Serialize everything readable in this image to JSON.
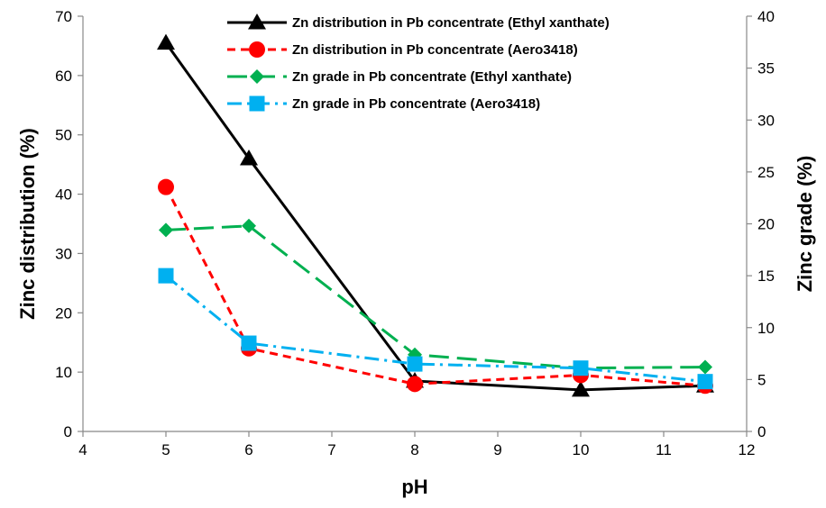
{
  "chart_data": {
    "type": "line",
    "xlabel": "pH",
    "ylabel": "Zinc distribution (%)",
    "y2label": "Zinc grade (%)",
    "xlim": [
      4,
      12
    ],
    "xticks": [
      4,
      5,
      6,
      7,
      8,
      9,
      10,
      11,
      12
    ],
    "ylim": [
      0,
      70
    ],
    "yticks": [
      0,
      10,
      20,
      30,
      40,
      50,
      60,
      70
    ],
    "y2lim": [
      0,
      40
    ],
    "y2ticks": [
      0,
      5,
      10,
      15,
      20,
      25,
      30,
      35,
      40
    ],
    "grid": false,
    "legend_position": "top-center",
    "series": [
      {
        "name": "Zn distribution in Pb concentrate (Ethyl xanthate)",
        "axis": "left",
        "color": "#000000",
        "line_style": "solid",
        "marker": "triangle",
        "x": [
          5,
          6,
          8,
          10,
          11.5
        ],
        "y": [
          65.5,
          46,
          8.5,
          7,
          7.7
        ]
      },
      {
        "name": "Zn distribution in Pb concentrate (Aero3418)",
        "axis": "left",
        "color": "#ff0000",
        "line_style": "dashed",
        "marker": "circle",
        "x": [
          5,
          6,
          8,
          10,
          11.5
        ],
        "y": [
          41.2,
          14,
          8,
          9.5,
          7.7
        ]
      },
      {
        "name": "Zn grade in Pb concentrate (Ethyl xanthate)",
        "axis": "right",
        "color": "#00b050",
        "line_style": "long-dash",
        "marker": "diamond",
        "x": [
          5,
          6,
          8,
          10,
          11.5
        ],
        "y": [
          19.4,
          19.8,
          7.4,
          6.1,
          6.2
        ]
      },
      {
        "name": "Zn grade in Pb concentrate (Aero3418)",
        "axis": "right",
        "color": "#00b0f0",
        "line_style": "dash-dot",
        "marker": "square",
        "x": [
          5,
          6,
          8,
          10,
          11.5
        ],
        "y": [
          15,
          8.5,
          6.5,
          6.1,
          4.8
        ]
      }
    ]
  }
}
